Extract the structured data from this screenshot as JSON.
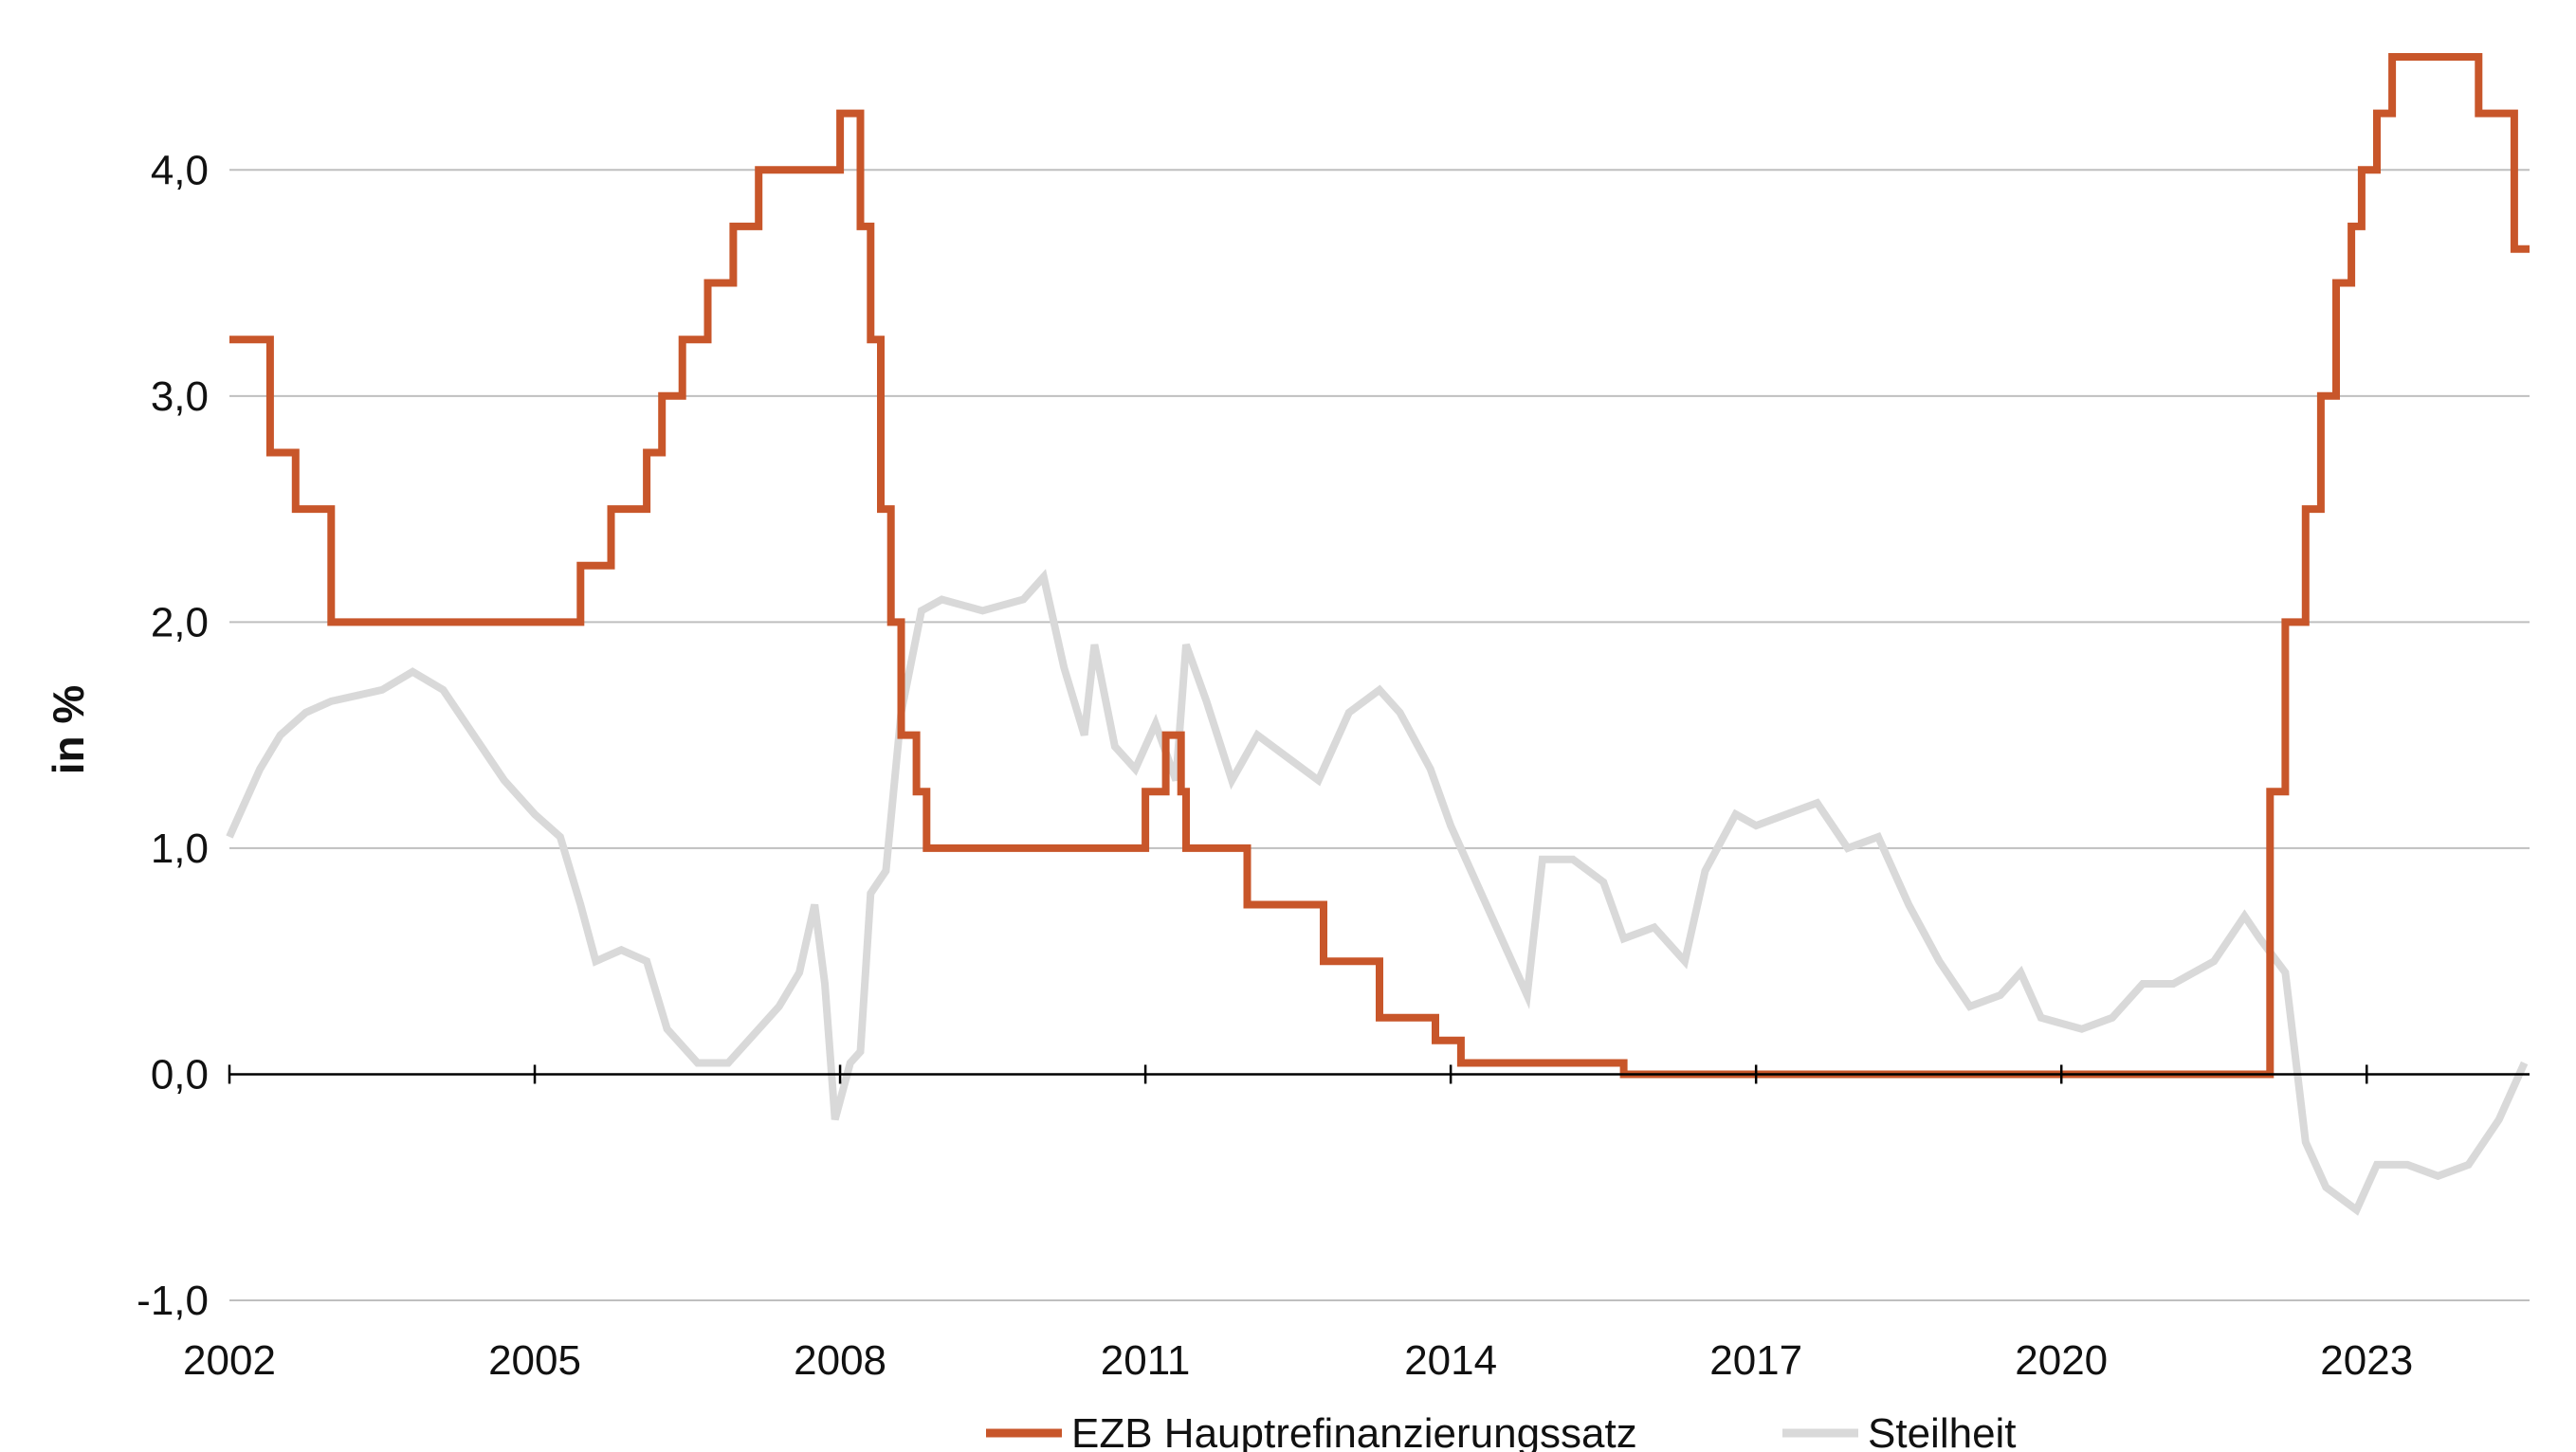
{
  "chart_data": {
    "type": "line",
    "title": "",
    "xlabel": "",
    "ylabel": "in %",
    "xlim": [
      2002.0,
      2024.6
    ],
    "ylim": [
      -1.0,
      4.5
    ],
    "x_ticks": [
      2002,
      2005,
      2008,
      2011,
      2014,
      2017,
      2020,
      2023
    ],
    "y_ticks": [
      -1.0,
      0.0,
      1.0,
      2.0,
      3.0,
      4.0
    ],
    "y_tick_labels": [
      "-1,0",
      "0,0",
      "1,0",
      "2,0",
      "3,0",
      "4,0"
    ],
    "grid": "horizontal",
    "legend_position": "bottom-center",
    "colors": {
      "ezb": "#c8562a",
      "steilheit": "#d9d9d9",
      "grid": "#bfbfbf",
      "axis": "#000000"
    },
    "series": [
      {
        "name": "EZB Hauptrefinanzierungssatz",
        "style": "step",
        "points": [
          [
            2002.0,
            3.25
          ],
          [
            2002.4,
            2.75
          ],
          [
            2002.65,
            2.5
          ],
          [
            2003.0,
            2.0
          ],
          [
            2005.45,
            2.25
          ],
          [
            2005.75,
            2.5
          ],
          [
            2006.1,
            2.75
          ],
          [
            2006.25,
            3.0
          ],
          [
            2006.45,
            3.25
          ],
          [
            2006.7,
            3.5
          ],
          [
            2006.95,
            3.75
          ],
          [
            2007.2,
            4.0
          ],
          [
            2008.0,
            4.25
          ],
          [
            2008.2,
            3.75
          ],
          [
            2008.3,
            3.25
          ],
          [
            2008.4,
            2.5
          ],
          [
            2008.5,
            2.0
          ],
          [
            2008.6,
            1.5
          ],
          [
            2008.75,
            1.25
          ],
          [
            2008.85,
            1.0
          ],
          [
            2011.0,
            1.25
          ],
          [
            2011.2,
            1.5
          ],
          [
            2011.35,
            1.25
          ],
          [
            2011.4,
            1.0
          ],
          [
            2012.0,
            0.75
          ],
          [
            2012.6,
            0.75
          ],
          [
            2012.75,
            0.5
          ],
          [
            2013.3,
            0.25
          ],
          [
            2013.85,
            0.15
          ],
          [
            2014.1,
            0.05
          ],
          [
            2015.7,
            0.0
          ],
          [
            2022.05,
            1.25
          ],
          [
            2022.2,
            2.0
          ],
          [
            2022.4,
            2.5
          ],
          [
            2022.55,
            3.0
          ],
          [
            2022.7,
            3.5
          ],
          [
            2022.85,
            3.75
          ],
          [
            2022.95,
            4.0
          ],
          [
            2023.1,
            4.25
          ],
          [
            2023.25,
            4.5
          ],
          [
            2024.1,
            4.25
          ],
          [
            2024.45,
            3.65
          ],
          [
            2024.6,
            3.65
          ]
        ]
      },
      {
        "name": "Steilheit",
        "style": "line",
        "points": [
          [
            2002.0,
            1.05
          ],
          [
            2002.1,
            1.15
          ],
          [
            2002.3,
            1.35
          ],
          [
            2002.5,
            1.5
          ],
          [
            2002.75,
            1.6
          ],
          [
            2003.0,
            1.65
          ],
          [
            2003.5,
            1.7
          ],
          [
            2003.8,
            1.78
          ],
          [
            2004.1,
            1.7
          ],
          [
            2004.4,
            1.5
          ],
          [
            2004.7,
            1.3
          ],
          [
            2005.0,
            1.15
          ],
          [
            2005.25,
            1.05
          ],
          [
            2005.45,
            0.75
          ],
          [
            2005.6,
            0.5
          ],
          [
            2005.85,
            0.55
          ],
          [
            2006.1,
            0.5
          ],
          [
            2006.3,
            0.2
          ],
          [
            2006.6,
            0.05
          ],
          [
            2006.9,
            0.05
          ],
          [
            2007.1,
            0.15
          ],
          [
            2007.4,
            0.3
          ],
          [
            2007.6,
            0.45
          ],
          [
            2007.75,
            0.75
          ],
          [
            2007.85,
            0.4
          ],
          [
            2007.95,
            -0.2
          ],
          [
            2008.1,
            0.05
          ],
          [
            2008.2,
            0.1
          ],
          [
            2008.3,
            0.8
          ],
          [
            2008.45,
            0.9
          ],
          [
            2008.6,
            1.6
          ],
          [
            2008.8,
            2.05
          ],
          [
            2009.0,
            2.1
          ],
          [
            2009.4,
            2.05
          ],
          [
            2009.8,
            2.1
          ],
          [
            2010.0,
            2.2
          ],
          [
            2010.2,
            1.8
          ],
          [
            2010.4,
            1.5
          ],
          [
            2010.5,
            1.9
          ],
          [
            2010.7,
            1.45
          ],
          [
            2010.9,
            1.35
          ],
          [
            2011.1,
            1.55
          ],
          [
            2011.3,
            1.3
          ],
          [
            2011.4,
            1.9
          ],
          [
            2011.6,
            1.65
          ],
          [
            2011.85,
            1.3
          ],
          [
            2012.1,
            1.5
          ],
          [
            2012.4,
            1.4
          ],
          [
            2012.7,
            1.3
          ],
          [
            2013.0,
            1.6
          ],
          [
            2013.3,
            1.7
          ],
          [
            2013.5,
            1.6
          ],
          [
            2013.8,
            1.35
          ],
          [
            2014.0,
            1.1
          ],
          [
            2014.3,
            0.8
          ],
          [
            2014.55,
            0.55
          ],
          [
            2014.75,
            0.35
          ],
          [
            2014.9,
            0.95
          ],
          [
            2015.2,
            0.95
          ],
          [
            2015.5,
            0.85
          ],
          [
            2015.7,
            0.6
          ],
          [
            2016.0,
            0.65
          ],
          [
            2016.3,
            0.5
          ],
          [
            2016.5,
            0.9
          ],
          [
            2016.8,
            1.15
          ],
          [
            2017.0,
            1.1
          ],
          [
            2017.3,
            1.15
          ],
          [
            2017.6,
            1.2
          ],
          [
            2017.9,
            1.0
          ],
          [
            2018.2,
            1.05
          ],
          [
            2018.5,
            0.75
          ],
          [
            2018.8,
            0.5
          ],
          [
            2019.1,
            0.3
          ],
          [
            2019.4,
            0.35
          ],
          [
            2019.6,
            0.45
          ],
          [
            2019.8,
            0.25
          ],
          [
            2020.2,
            0.2
          ],
          [
            2020.5,
            0.25
          ],
          [
            2020.8,
            0.4
          ],
          [
            2021.1,
            0.4
          ],
          [
            2021.5,
            0.5
          ],
          [
            2021.8,
            0.7
          ],
          [
            2021.95,
            0.6
          ],
          [
            2022.2,
            0.45
          ],
          [
            2022.4,
            -0.3
          ],
          [
            2022.6,
            -0.5
          ],
          [
            2022.9,
            -0.6
          ],
          [
            2023.1,
            -0.4
          ],
          [
            2023.4,
            -0.4
          ],
          [
            2023.7,
            -0.45
          ],
          [
            2024.0,
            -0.4
          ],
          [
            2024.3,
            -0.2
          ],
          [
            2024.55,
            0.05
          ]
        ]
      }
    ]
  }
}
